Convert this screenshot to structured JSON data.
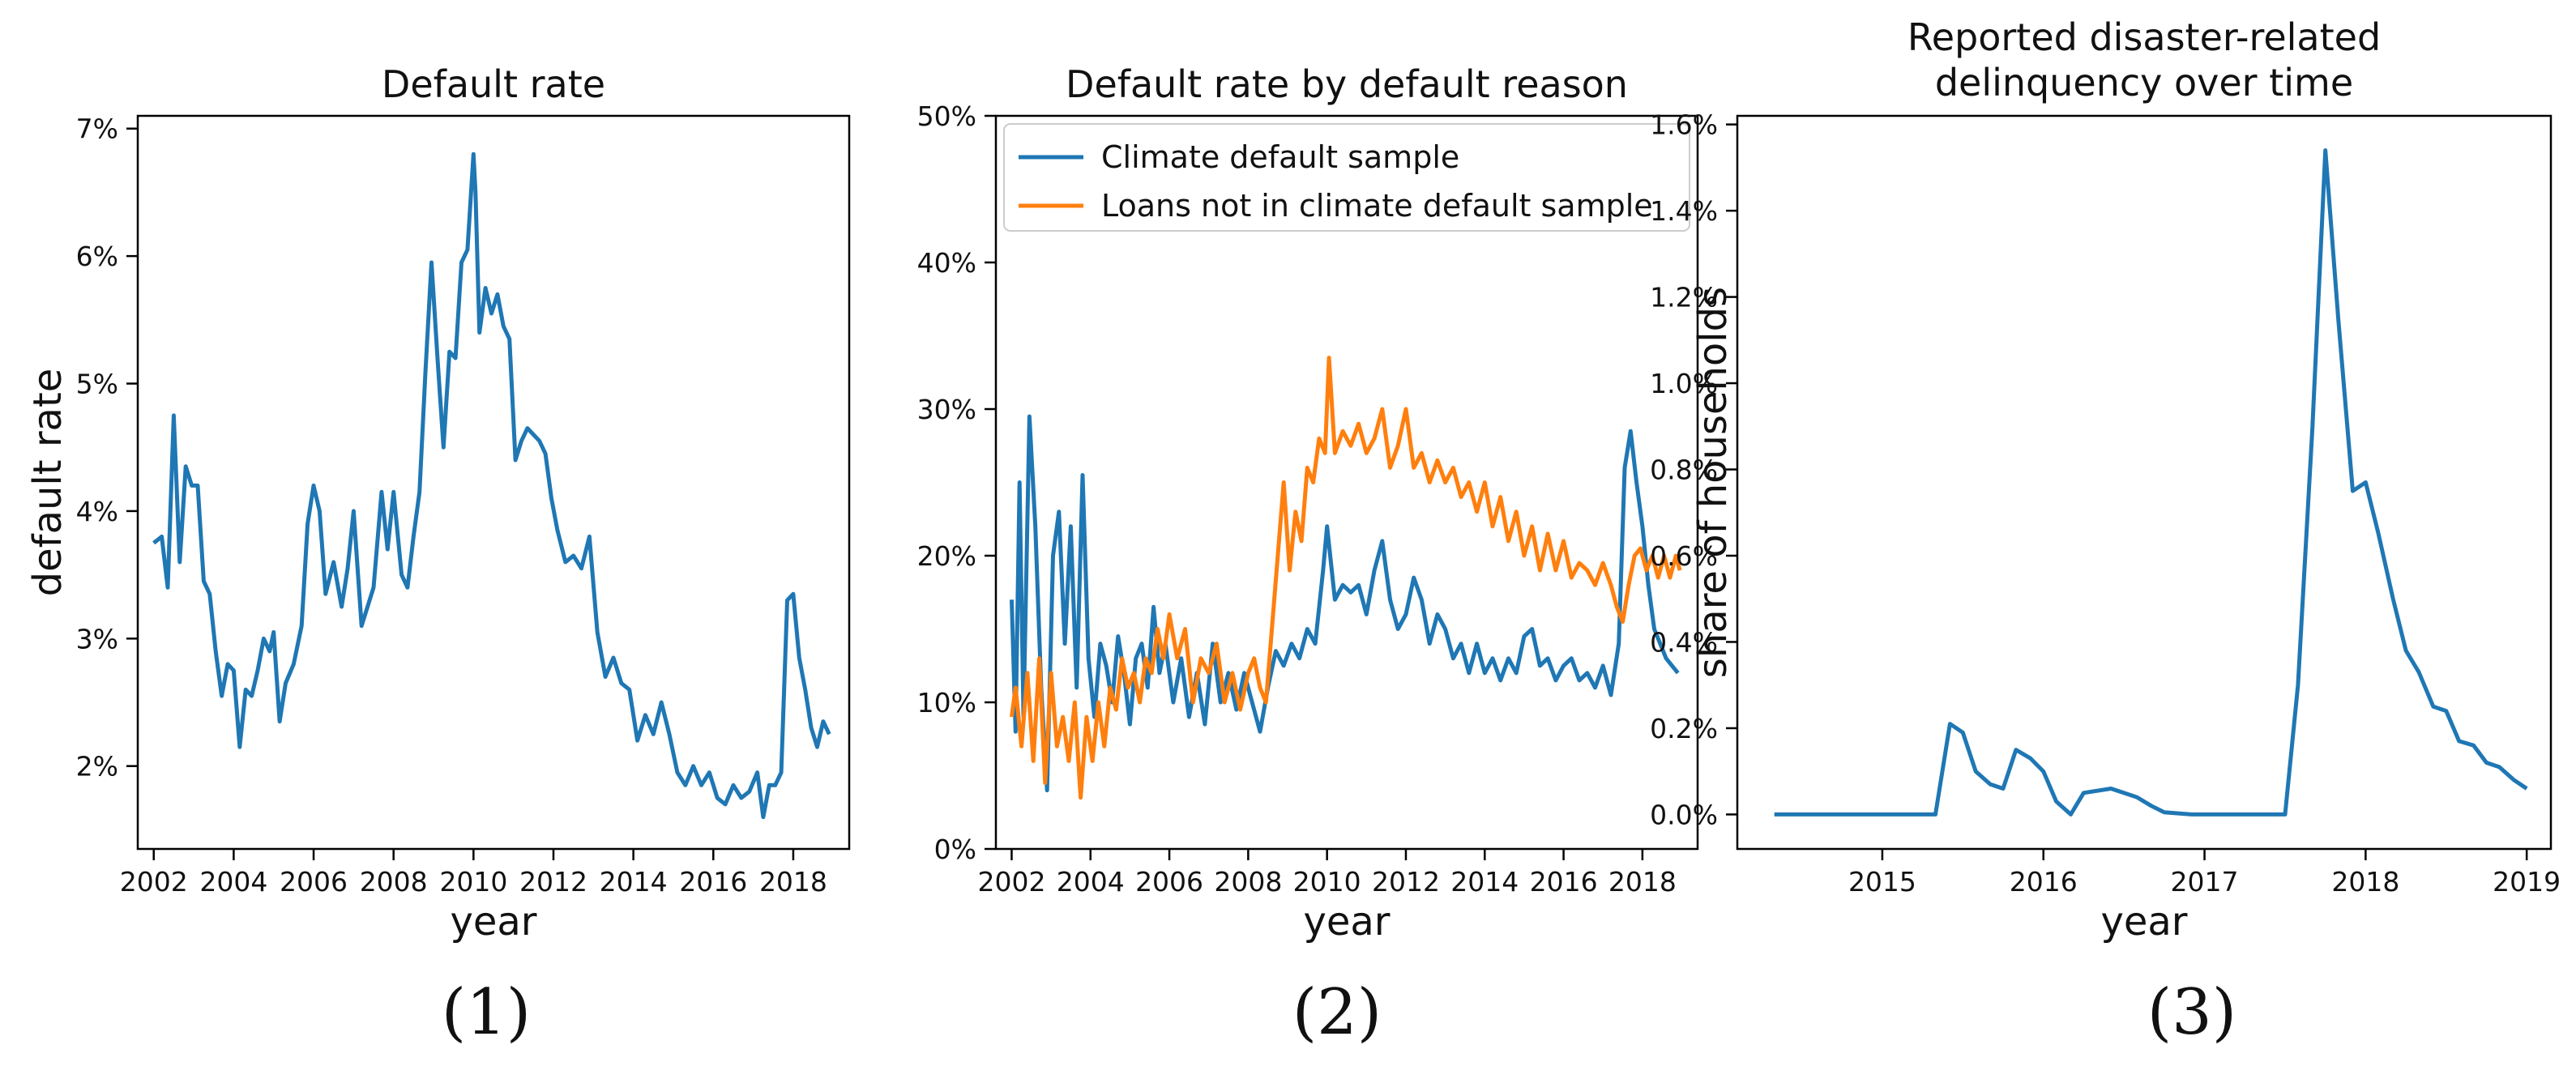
{
  "colors": {
    "blue": "#1f77b4",
    "orange": "#ff7f0e",
    "axis": "#000000"
  },
  "captions": [
    "(1)",
    "(2)",
    "(3)"
  ],
  "chart_data": [
    {
      "type": "line",
      "title": "Default rate",
      "xlabel": "year",
      "ylabel": "default rate",
      "xlim": [
        2001.6,
        2019.4
      ],
      "ylim": [
        1.35,
        7.1
      ],
      "xticks": [
        2002,
        2004,
        2006,
        2008,
        2010,
        2012,
        2014,
        2016,
        2018
      ],
      "xtick_labels": [
        "2002",
        "2004",
        "2006",
        "2008",
        "2010",
        "2012",
        "2014",
        "2016",
        "2018"
      ],
      "yticks": [
        2,
        3,
        4,
        5,
        6,
        7
      ],
      "ytick_labels": [
        "2%",
        "3%",
        "4%",
        "5%",
        "6%",
        "7%"
      ],
      "series": [
        {
          "name": "Default rate",
          "color": "#1f77b4",
          "x": [
            2002.0,
            2002.2,
            2002.35,
            2002.5,
            2002.65,
            2002.8,
            2002.95,
            2003.1,
            2003.25,
            2003.4,
            2003.55,
            2003.7,
            2003.85,
            2004.0,
            2004.15,
            2004.3,
            2004.45,
            2004.6,
            2004.75,
            2004.9,
            2005.0,
            2005.15,
            2005.3,
            2005.5,
            2005.7,
            2005.85,
            2006.0,
            2006.15,
            2006.3,
            2006.5,
            2006.7,
            2006.85,
            2007.0,
            2007.2,
            2007.35,
            2007.5,
            2007.7,
            2007.85,
            2008.0,
            2008.2,
            2008.35,
            2008.5,
            2008.65,
            2008.8,
            2008.95,
            2009.1,
            2009.25,
            2009.4,
            2009.55,
            2009.7,
            2009.85,
            2010.0,
            2010.05,
            2010.15,
            2010.3,
            2010.45,
            2010.6,
            2010.75,
            2010.9,
            2011.05,
            2011.2,
            2011.35,
            2011.5,
            2011.65,
            2011.8,
            2011.95,
            2012.1,
            2012.3,
            2012.5,
            2012.7,
            2012.9,
            2013.1,
            2013.3,
            2013.5,
            2013.7,
            2013.9,
            2014.1,
            2014.3,
            2014.5,
            2014.7,
            2014.9,
            2015.1,
            2015.3,
            2015.5,
            2015.7,
            2015.9,
            2016.1,
            2016.3,
            2016.5,
            2016.7,
            2016.9,
            2017.1,
            2017.25,
            2017.4,
            2017.55,
            2017.7,
            2017.85,
            2018.0,
            2018.15,
            2018.3,
            2018.45,
            2018.6,
            2018.75,
            2018.9
          ],
          "y": [
            3.75,
            3.8,
            3.4,
            4.75,
            3.6,
            4.35,
            4.2,
            4.2,
            3.45,
            3.35,
            2.9,
            2.55,
            2.8,
            2.75,
            2.15,
            2.6,
            2.55,
            2.75,
            3.0,
            2.9,
            3.05,
            2.35,
            2.65,
            2.8,
            3.1,
            3.9,
            4.2,
            4.0,
            3.35,
            3.6,
            3.25,
            3.55,
            4.0,
            3.1,
            3.25,
            3.4,
            4.15,
            3.7,
            4.15,
            3.5,
            3.4,
            3.8,
            4.15,
            5.1,
            5.95,
            5.2,
            4.5,
            5.25,
            5.2,
            5.95,
            6.05,
            6.8,
            6.5,
            5.4,
            5.75,
            5.55,
            5.7,
            5.45,
            5.35,
            4.4,
            4.55,
            4.65,
            4.6,
            4.55,
            4.45,
            4.1,
            3.85,
            3.6,
            3.65,
            3.55,
            3.8,
            3.05,
            2.7,
            2.85,
            2.65,
            2.6,
            2.2,
            2.4,
            2.25,
            2.5,
            2.25,
            1.95,
            1.85,
            2.0,
            1.85,
            1.95,
            1.75,
            1.7,
            1.85,
            1.75,
            1.8,
            1.95,
            1.6,
            1.85,
            1.85,
            1.95,
            3.3,
            3.35,
            2.85,
            2.6,
            2.3,
            2.15,
            2.35,
            2.25
          ]
        }
      ]
    },
    {
      "type": "line",
      "title": "Default rate by default reason",
      "xlabel": "year",
      "ylabel": "",
      "xlim": [
        2001.6,
        2019.4
      ],
      "ylim": [
        0,
        50
      ],
      "xticks": [
        2002,
        2004,
        2006,
        2008,
        2010,
        2012,
        2014,
        2016,
        2018
      ],
      "xtick_labels": [
        "2002",
        "2004",
        "2006",
        "2008",
        "2010",
        "2012",
        "2014",
        "2016",
        "2018"
      ],
      "yticks": [
        0,
        10,
        20,
        30,
        40,
        50
      ],
      "ytick_labels": [
        "0%",
        "10%",
        "20%",
        "30%",
        "40%",
        "50%"
      ],
      "legend": "top-left",
      "series": [
        {
          "name": "Climate default sample",
          "color": "#1f77b4",
          "x": [
            2002.0,
            2002.1,
            2002.2,
            2002.3,
            2002.45,
            2002.6,
            2002.75,
            2002.9,
            2003.05,
            2003.2,
            2003.35,
            2003.5,
            2003.65,
            2003.8,
            2003.95,
            2004.1,
            2004.25,
            2004.4,
            2004.55,
            2004.7,
            2004.85,
            2005.0,
            2005.15,
            2005.3,
            2005.45,
            2005.6,
            2005.75,
            2005.9,
            2006.1,
            2006.3,
            2006.5,
            2006.7,
            2006.9,
            2007.1,
            2007.3,
            2007.5,
            2007.7,
            2007.9,
            2008.1,
            2008.3,
            2008.5,
            2008.7,
            2008.9,
            2009.1,
            2009.3,
            2009.5,
            2009.7,
            2009.9,
            2010.0,
            2010.2,
            2010.4,
            2010.6,
            2010.8,
            2011.0,
            2011.2,
            2011.4,
            2011.6,
            2011.8,
            2012.0,
            2012.2,
            2012.4,
            2012.6,
            2012.8,
            2013.0,
            2013.2,
            2013.4,
            2013.6,
            2013.8,
            2014.0,
            2014.2,
            2014.4,
            2014.6,
            2014.8,
            2015.0,
            2015.2,
            2015.4,
            2015.6,
            2015.8,
            2016.0,
            2016.2,
            2016.4,
            2016.6,
            2016.8,
            2017.0,
            2017.2,
            2017.4,
            2017.55,
            2017.7,
            2017.85,
            2018.0,
            2018.15,
            2018.3,
            2018.45,
            2018.6,
            2018.75,
            2018.9
          ],
          "y": [
            17,
            8,
            25,
            9,
            29.5,
            22,
            11,
            4,
            20,
            23,
            14,
            22,
            11,
            25.5,
            13,
            9,
            14,
            12.5,
            10,
            14.5,
            12,
            8.5,
            13,
            14,
            11,
            16.5,
            12,
            14,
            10,
            13,
            9,
            12,
            8.5,
            14,
            10,
            12,
            9.5,
            12,
            10,
            8,
            11,
            13.5,
            12.5,
            14,
            13,
            15,
            14,
            19,
            22,
            17,
            18,
            17.5,
            18,
            16,
            19,
            21,
            17,
            15,
            16,
            18.5,
            17,
            14,
            16,
            15,
            13,
            14,
            12,
            14,
            12,
            13,
            11.5,
            13,
            12,
            14.5,
            15,
            12.5,
            13,
            11.5,
            12.5,
            13,
            11.5,
            12,
            11,
            12.5,
            10.5,
            14,
            26,
            28.5,
            25,
            22,
            18,
            15,
            14,
            13,
            12.5,
            12
          ]
        },
        {
          "name": "Loans not in climate default sample",
          "color": "#ff7f0e",
          "x": [
            2002.0,
            2002.1,
            2002.25,
            2002.4,
            2002.55,
            2002.7,
            2002.85,
            2003.0,
            2003.15,
            2003.3,
            2003.45,
            2003.6,
            2003.75,
            2003.9,
            2004.05,
            2004.2,
            2004.35,
            2004.5,
            2004.65,
            2004.8,
            2004.95,
            2005.1,
            2005.25,
            2005.4,
            2005.55,
            2005.7,
            2005.85,
            2006.0,
            2006.2,
            2006.4,
            2006.6,
            2006.8,
            2007.0,
            2007.2,
            2007.4,
            2007.6,
            2007.8,
            2008.0,
            2008.15,
            2008.3,
            2008.45,
            2008.6,
            2008.75,
            2008.9,
            2009.05,
            2009.2,
            2009.35,
            2009.5,
            2009.65,
            2009.8,
            2009.95,
            2010.05,
            2010.2,
            2010.4,
            2010.6,
            2010.8,
            2011.0,
            2011.2,
            2011.4,
            2011.6,
            2011.8,
            2012.0,
            2012.2,
            2012.4,
            2012.6,
            2012.8,
            2013.0,
            2013.2,
            2013.4,
            2013.6,
            2013.8,
            2014.0,
            2014.2,
            2014.4,
            2014.6,
            2014.8,
            2015.0,
            2015.2,
            2015.4,
            2015.6,
            2015.8,
            2016.0,
            2016.2,
            2016.4,
            2016.6,
            2016.8,
            2017.0,
            2017.2,
            2017.35,
            2017.5,
            2017.65,
            2017.8,
            2017.95,
            2018.1,
            2018.25,
            2018.4,
            2018.55,
            2018.7,
            2018.85,
            2018.95
          ],
          "y": [
            9,
            11,
            7,
            12,
            6,
            13,
            4.5,
            12,
            7,
            9,
            6,
            10,
            3.5,
            9,
            6,
            10,
            7,
            11,
            9.5,
            13,
            11,
            12,
            10,
            13,
            12,
            15,
            13,
            16,
            13,
            15,
            10,
            13,
            12,
            14,
            10,
            12,
            9.5,
            12,
            13,
            11,
            10,
            15,
            20,
            25,
            19,
            23,
            21,
            26,
            25,
            28,
            27,
            33.5,
            27,
            28.5,
            27.5,
            29,
            27,
            28,
            30,
            26,
            27.5,
            30,
            26,
            27,
            25,
            26.5,
            25,
            26,
            24,
            25,
            23,
            25,
            22,
            24,
            21,
            23,
            20,
            22,
            19,
            21.5,
            19,
            21,
            18.5,
            19.5,
            19,
            18,
            19.5,
            18,
            16.5,
            15.5,
            18,
            20,
            20.5,
            19,
            20,
            18.5,
            20,
            18.5,
            20,
            19
          ]
        }
      ]
    },
    {
      "type": "line",
      "title": "Reported disaster-related delinquency over time",
      "title_lines": [
        "Reported disaster-related",
        "delinquency over time"
      ],
      "xlabel": "year",
      "ylabel": "share of households",
      "xlim": [
        2014.1,
        2019.15
      ],
      "ylim": [
        -0.08,
        1.62
      ],
      "xticks": [
        2015,
        2016,
        2017,
        2018,
        2019
      ],
      "xtick_labels": [
        "2015",
        "2016",
        "2017",
        "2018",
        "2019"
      ],
      "yticks": [
        0.0,
        0.2,
        0.4,
        0.6,
        0.8,
        1.0,
        1.2,
        1.4,
        1.6
      ],
      "ytick_labels": [
        "0.0%",
        "0.2%",
        "0.4%",
        "0.6%",
        "0.8%",
        "1.0%",
        "1.2%",
        "1.4%",
        "1.6%"
      ],
      "series": [
        {
          "name": "Reported disaster-related delinquency",
          "color": "#1f77b4",
          "x": [
            2014.33,
            2014.5,
            2014.75,
            2015.0,
            2015.17,
            2015.33,
            2015.42,
            2015.5,
            2015.58,
            2015.67,
            2015.75,
            2015.83,
            2015.92,
            2016.0,
            2016.08,
            2016.17,
            2016.25,
            2016.42,
            2016.58,
            2016.67,
            2016.75,
            2016.92,
            2017.08,
            2017.25,
            2017.5,
            2017.58,
            2017.67,
            2017.75,
            2017.83,
            2017.92,
            2018.0,
            2018.08,
            2018.17,
            2018.25,
            2018.33,
            2018.42,
            2018.5,
            2018.58,
            2018.67,
            2018.75,
            2018.83,
            2018.92,
            2019.0
          ],
          "y": [
            0.0,
            0.0,
            0.0,
            0.0,
            0.0,
            0.0,
            0.21,
            0.19,
            0.1,
            0.07,
            0.06,
            0.15,
            0.13,
            0.1,
            0.03,
            0.0,
            0.05,
            0.06,
            0.04,
            0.02,
            0.005,
            0.0,
            0.0,
            0.0,
            0.0,
            0.3,
            0.9,
            1.54,
            1.15,
            0.75,
            0.77,
            0.65,
            0.5,
            0.38,
            0.33,
            0.25,
            0.24,
            0.17,
            0.16,
            0.12,
            0.11,
            0.08,
            0.06
          ]
        }
      ]
    }
  ]
}
